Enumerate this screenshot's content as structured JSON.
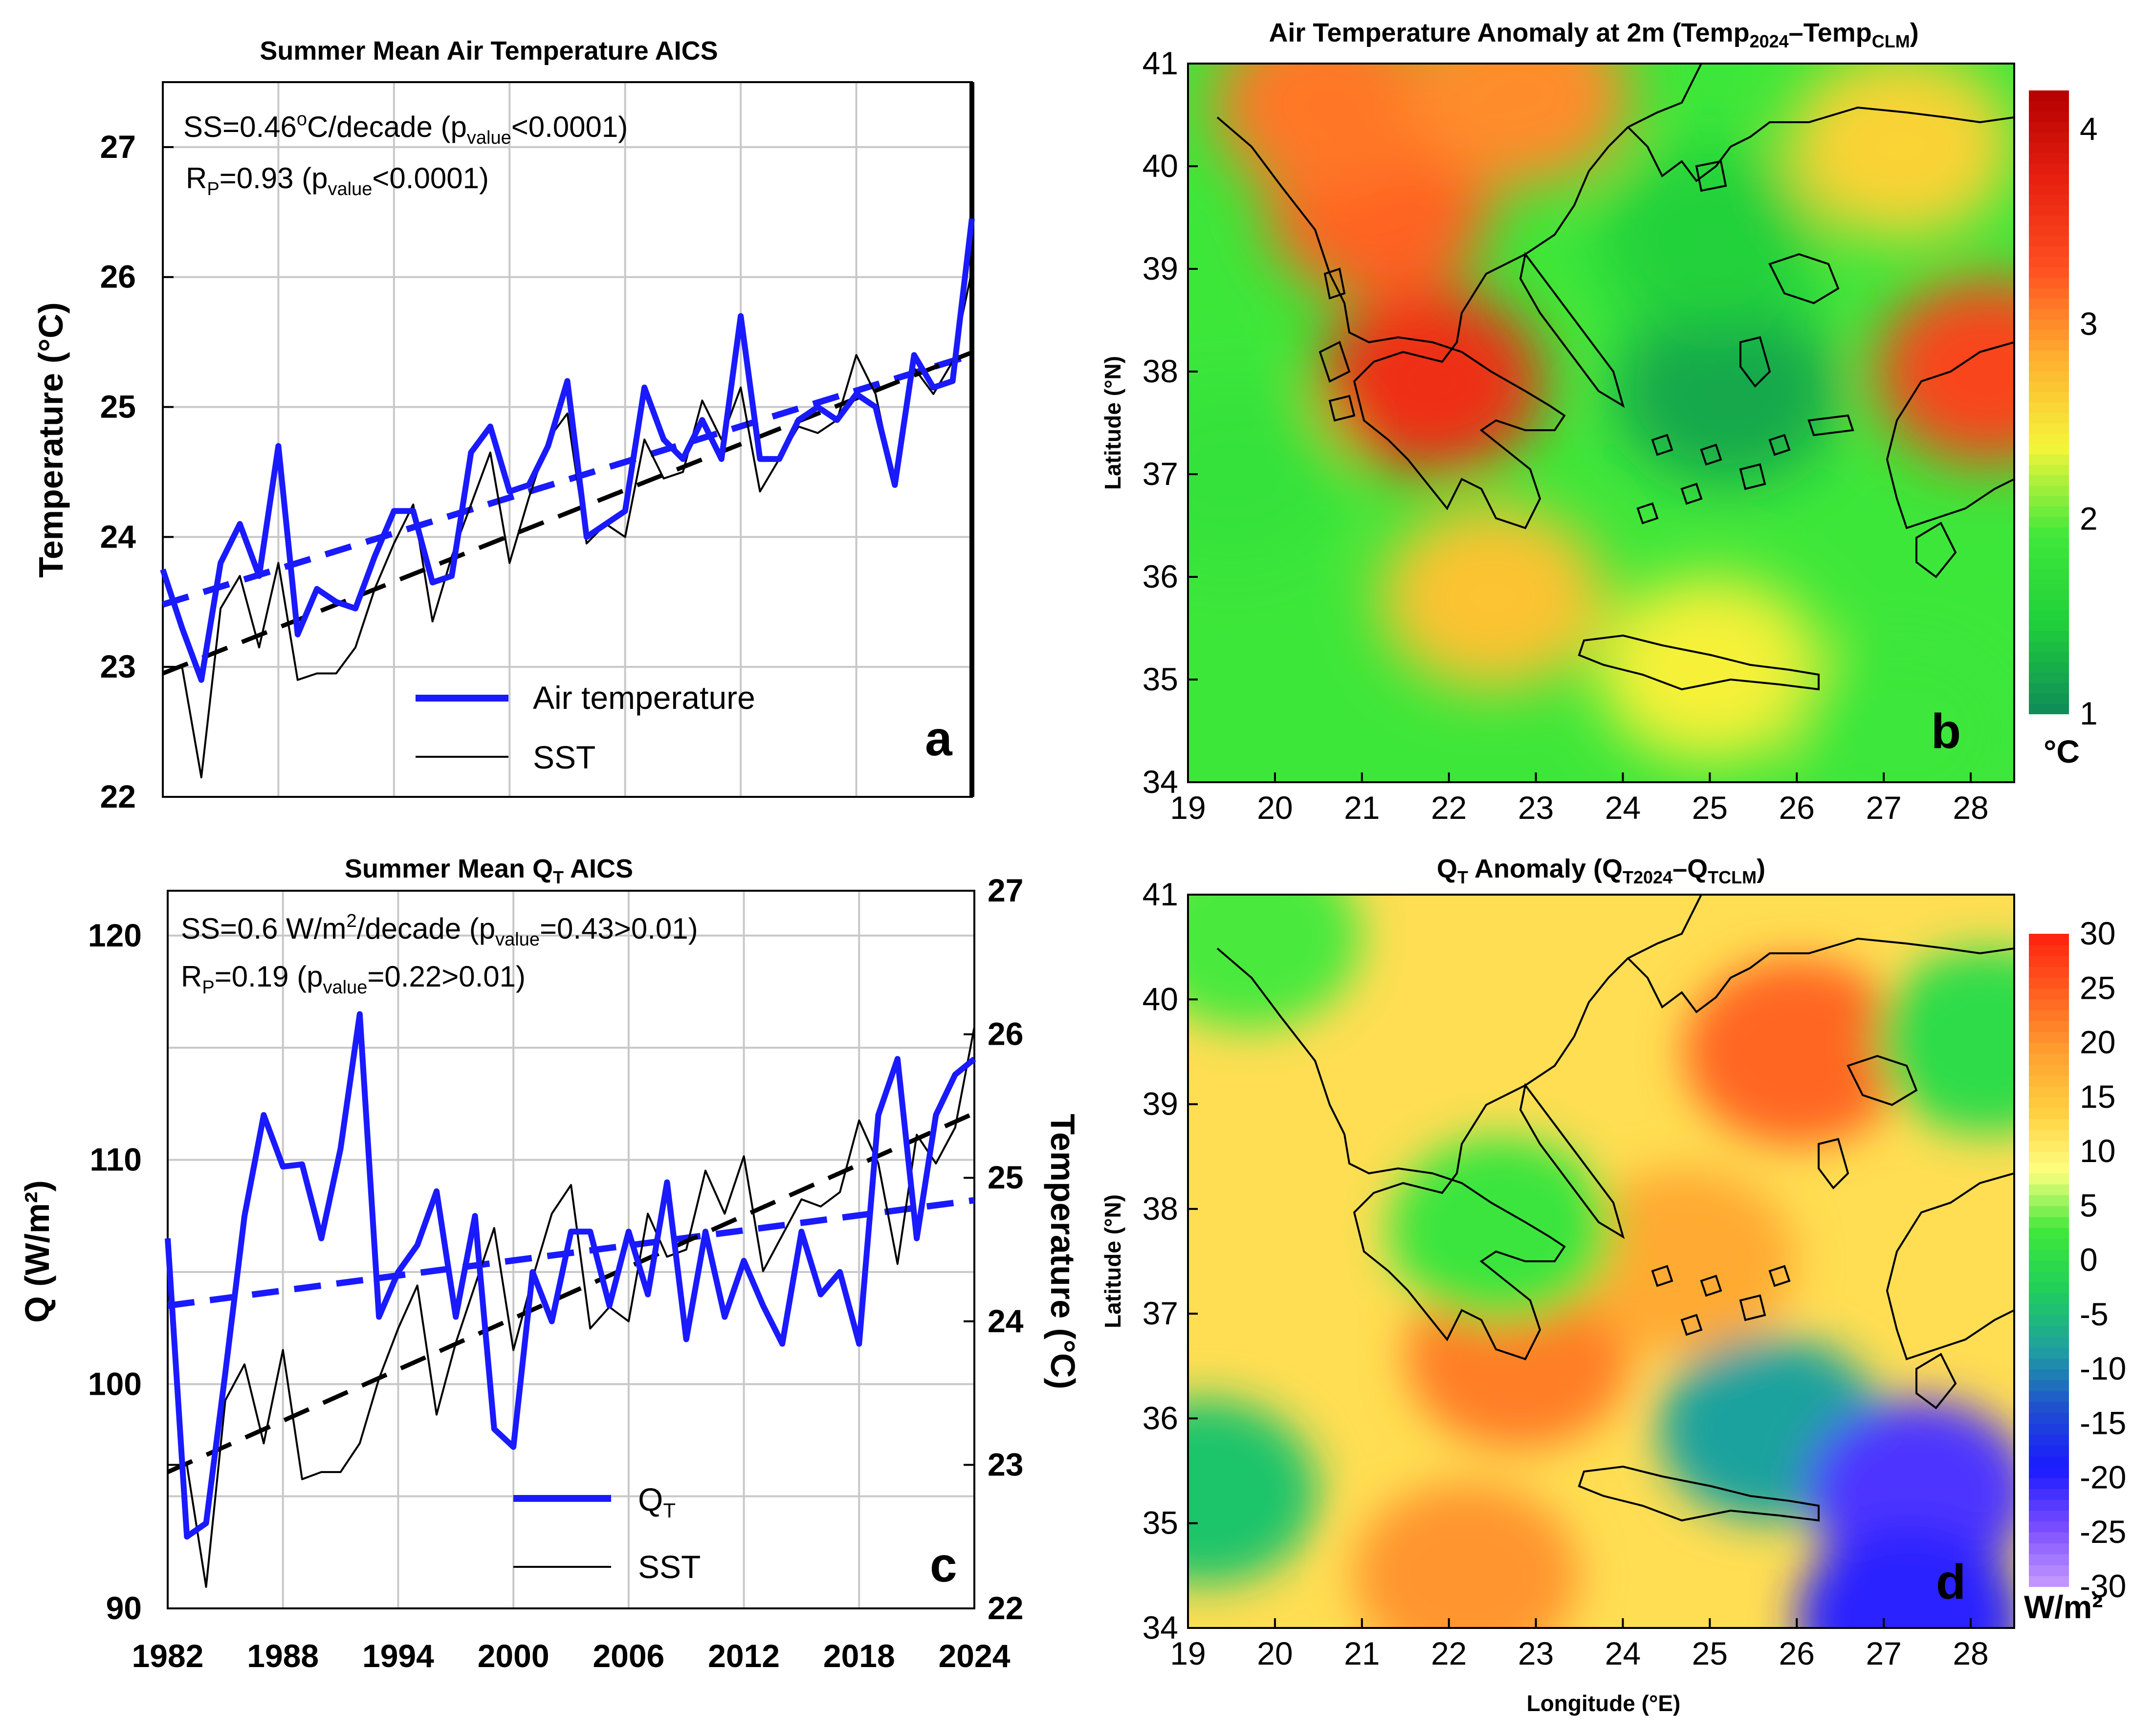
{
  "chart_data": [
    {
      "type": "line",
      "panel_letter": "a",
      "title": "Summer Mean Air Temperature AICS",
      "ylabel": "Temperature (°C)",
      "ylim": [
        22,
        27.5
      ],
      "xlim": [
        1982,
        2024
      ],
      "yticks": [
        22,
        23,
        24,
        25,
        26,
        27
      ],
      "annotations": [
        {
          "pre": "SS=0.46",
          "sup": "o",
          "mid": "C/decade (p",
          "sub": "value",
          "post": "<0.0001)"
        },
        {
          "pre": "R",
          "sub": "P",
          "mid": "=0.93 (p",
          "sub2": "value",
          "post": "<0.0001)"
        }
      ],
      "legend": [
        "Air temperature",
        "SST"
      ],
      "x": [
        1982,
        1983,
        1984,
        1985,
        1986,
        1987,
        1988,
        1989,
        1990,
        1991,
        1992,
        1993,
        1994,
        1995,
        1996,
        1997,
        1998,
        1999,
        2000,
        2001,
        2002,
        2003,
        2004,
        2005,
        2006,
        2007,
        2008,
        2009,
        2010,
        2011,
        2012,
        2013,
        2014,
        2015,
        2016,
        2017,
        2018,
        2019,
        2020,
        2021,
        2022,
        2023,
        2024
      ],
      "series": [
        {
          "name": "Air temperature",
          "color": "#1a1aff",
          "values": [
            23.75,
            23.3,
            22.9,
            23.8,
            24.1,
            23.7,
            24.7,
            23.25,
            23.6,
            23.5,
            23.45,
            23.85,
            24.2,
            24.2,
            23.65,
            23.7,
            24.65,
            24.85,
            24.35,
            24.4,
            24.7,
            25.2,
            24.0,
            24.1,
            24.2,
            25.15,
            24.75,
            24.6,
            24.9,
            24.6,
            25.7,
            24.6,
            24.6,
            24.9,
            25.0,
            24.9,
            25.1,
            25.0,
            24.4,
            25.4,
            25.15,
            25.2,
            26.45
          ]
        },
        {
          "name": "SST",
          "color": "#000000",
          "values": [
            23.0,
            23.0,
            22.15,
            23.45,
            23.7,
            23.15,
            23.8,
            22.9,
            22.95,
            22.95,
            23.15,
            23.6,
            23.95,
            24.25,
            23.35,
            23.85,
            24.25,
            24.65,
            23.8,
            24.3,
            24.75,
            24.95,
            23.95,
            24.1,
            24.0,
            24.75,
            24.45,
            24.5,
            25.05,
            24.75,
            25.15,
            24.35,
            24.6,
            24.85,
            24.8,
            24.9,
            25.4,
            25.1,
            24.4,
            25.3,
            25.1,
            25.35,
            26.05
          ]
        }
      ],
      "trend_lines": [
        {
          "of": "Air temperature",
          "from": [
            1982,
            23.48
          ],
          "to": [
            2024,
            25.4
          ],
          "color": "#1a1aff"
        },
        {
          "of": "SST",
          "from": [
            1982,
            22.95
          ],
          "to": [
            2024,
            25.42
          ],
          "color": "#000000"
        }
      ]
    },
    {
      "type": "heatmap",
      "panel_letter": "b",
      "title": {
        "pre": "Air Temperature Anomaly at 2m (Temp",
        "sub1": "2024",
        "mid": "–Temp",
        "sub2": "CLM",
        "post": ")"
      },
      "ylabel": "Latitude (°N)",
      "xlim": [
        19,
        28.5
      ],
      "ylim": [
        34,
        41
      ],
      "xticks": [
        19,
        20,
        21,
        22,
        23,
        24,
        25,
        26,
        27,
        28
      ],
      "yticks": [
        34,
        35,
        36,
        37,
        38,
        39,
        40,
        41
      ],
      "colorbar": {
        "min": 1,
        "max": 4.2,
        "ticks": [
          1,
          2,
          3,
          4
        ],
        "unit": "°C",
        "stops": [
          "#0f8a5a",
          "#1fcf3a",
          "#3ee83a",
          "#f5f53a",
          "#ffb030",
          "#ff5020",
          "#e82010",
          "#b40000"
        ]
      },
      "hotspots": [
        {
          "lon": 21.8,
          "lat": 37.9,
          "value": 3.6
        },
        {
          "lon": 21.2,
          "lat": 39.6,
          "value": 3.2
        },
        {
          "lon": 20.6,
          "lat": 40.6,
          "value": 3.1
        },
        {
          "lon": 22.8,
          "lat": 40.7,
          "value": 3.0
        },
        {
          "lon": 28.2,
          "lat": 38.0,
          "value": 3.4
        },
        {
          "lon": 27.2,
          "lat": 40.2,
          "value": 2.6
        },
        {
          "lon": 22.5,
          "lat": 35.8,
          "value": 2.7
        },
        {
          "lon": 25.0,
          "lat": 35.1,
          "value": 2.4
        },
        {
          "lon": 25.2,
          "lat": 37.8,
          "value": 1.2
        },
        {
          "lon": 25.0,
          "lat": 39.3,
          "value": 1.5
        },
        {
          "lon": 19.5,
          "lat": 37.0,
          "value": 1.8
        },
        {
          "lon": 27.2,
          "lat": 34.5,
          "value": 1.9
        }
      ]
    },
    {
      "type": "line",
      "panel_letter": "c",
      "title": {
        "pre": "Summer Mean Q",
        "sub": "T",
        "post": " AICS"
      },
      "ylabel": "Q (W/m²)",
      "y2label": "Temperature (°C)",
      "ylim": [
        90,
        122
      ],
      "y2lim": [
        22,
        27
      ],
      "xlim": [
        1982,
        2024
      ],
      "xticks": [
        1982,
        1988,
        1994,
        2000,
        2006,
        2012,
        2018,
        2024
      ],
      "yticks": [
        90,
        100,
        110,
        120
      ],
      "y2ticks": [
        22,
        23,
        24,
        25,
        26,
        27
      ],
      "annotations": [
        {
          "pre": "SS=0.6 W/m",
          "sup": "2",
          "mid": "/decade (p",
          "sub": "value",
          "post": "=0.43>0.01)"
        },
        {
          "pre": "R",
          "sub": "P",
          "mid": "=0.19 (p",
          "sub2": "value",
          "post": "=0.22>0.01)"
        }
      ],
      "legend": [
        {
          "pre": "Q",
          "sub": "T"
        },
        {
          "pre": "SST"
        }
      ],
      "x": [
        1982,
        1983,
        1984,
        1985,
        1986,
        1987,
        1988,
        1989,
        1990,
        1991,
        1992,
        1993,
        1994,
        1995,
        1996,
        1997,
        1998,
        1999,
        2000,
        2001,
        2002,
        2003,
        2004,
        2005,
        2006,
        2007,
        2008,
        2009,
        2010,
        2011,
        2012,
        2013,
        2014,
        2015,
        2016,
        2017,
        2018,
        2019,
        2020,
        2021,
        2022,
        2023,
        2024
      ],
      "series": [
        {
          "name": "Q_T",
          "color": "#1a1aff",
          "axis": "left",
          "values": [
            106.5,
            93.2,
            93.8,
            100.5,
            107.5,
            112.0,
            109.7,
            109.8,
            106.5,
            110.5,
            116.5,
            103.0,
            105.0,
            106.2,
            108.6,
            103.0,
            107.5,
            98.0,
            97.2,
            105.0,
            102.8,
            106.8,
            106.8,
            103.5,
            106.8,
            104.0,
            109.0,
            102.0,
            106.8,
            103.0,
            105.5,
            103.5,
            101.8,
            106.8,
            104.0,
            105.0,
            101.8,
            112.0,
            114.5,
            106.5,
            112.0,
            113.8,
            114.5
          ]
        },
        {
          "name": "SST",
          "color": "#000000",
          "axis": "right",
          "values": [
            23.0,
            23.0,
            22.15,
            23.45,
            23.7,
            23.15,
            23.8,
            22.9,
            22.95,
            22.95,
            23.15,
            23.6,
            23.95,
            24.25,
            23.35,
            23.85,
            24.25,
            24.65,
            23.8,
            24.3,
            24.75,
            24.95,
            23.95,
            24.1,
            24.0,
            24.75,
            24.45,
            24.5,
            25.05,
            24.75,
            25.15,
            24.35,
            24.6,
            24.85,
            24.8,
            24.9,
            25.4,
            25.1,
            24.4,
            25.3,
            25.1,
            25.35,
            26.05
          ]
        }
      ],
      "trend_lines": [
        {
          "of": "Q_T",
          "axis": "left",
          "from": [
            1982,
            103.5
          ],
          "to": [
            2024,
            108.2
          ],
          "color": "#1a1aff"
        },
        {
          "of": "SST",
          "axis": "right",
          "from": [
            1982,
            22.95
          ],
          "to": [
            2024,
            25.45
          ],
          "color": "#000000"
        }
      ]
    },
    {
      "type": "heatmap",
      "panel_letter": "d",
      "title": {
        "pre": "Q",
        "sub1": "T",
        "mid": " Anomaly (Q",
        "sub2": "T2024",
        "mid2": "–Q",
        "sub3": "TCLM",
        "post": ")"
      },
      "xlabel": "Longitude (°E)",
      "ylabel": "Latitude (°N)",
      "xlim": [
        19,
        28.5
      ],
      "ylim": [
        34,
        41
      ],
      "xticks": [
        19,
        20,
        21,
        22,
        23,
        24,
        25,
        26,
        27,
        28
      ],
      "yticks": [
        34,
        35,
        36,
        37,
        38,
        39,
        40,
        41
      ],
      "colorbar": {
        "min": -30,
        "max": 30,
        "ticks": [
          30,
          25,
          20,
          15,
          10,
          5,
          0,
          -5,
          -10,
          -15,
          -20,
          -25,
          -30
        ],
        "unit": "W/m²",
        "stops": [
          "#c79cff",
          "#7a4dff",
          "#1a1aff",
          "#1f4fd0",
          "#1fa0a0",
          "#1fcf5a",
          "#3ee83a",
          "#ffff80",
          "#ffd040",
          "#ffa030",
          "#ff6020",
          "#ff2010"
        ]
      },
      "hotspots": [
        {
          "lon": 26.0,
          "lat": 39.5,
          "value": 24
        },
        {
          "lon": 22.8,
          "lat": 36.6,
          "value": 22
        },
        {
          "lon": 22.2,
          "lat": 34.5,
          "value": 20
        },
        {
          "lon": 24.7,
          "lat": 37.5,
          "value": 18
        },
        {
          "lon": 25.7,
          "lat": 35.9,
          "value": -8
        },
        {
          "lon": 27.4,
          "lat": 35.3,
          "value": -22
        },
        {
          "lon": 27.3,
          "lat": 34.1,
          "value": -20
        },
        {
          "lon": 28.2,
          "lat": 39.6,
          "value": 0
        },
        {
          "lon": 19.7,
          "lat": 40.6,
          "value": 3
        },
        {
          "lon": 22.6,
          "lat": 37.8,
          "value": 2
        },
        {
          "lon": 19.2,
          "lat": 35.3,
          "value": -4
        }
      ]
    }
  ]
}
